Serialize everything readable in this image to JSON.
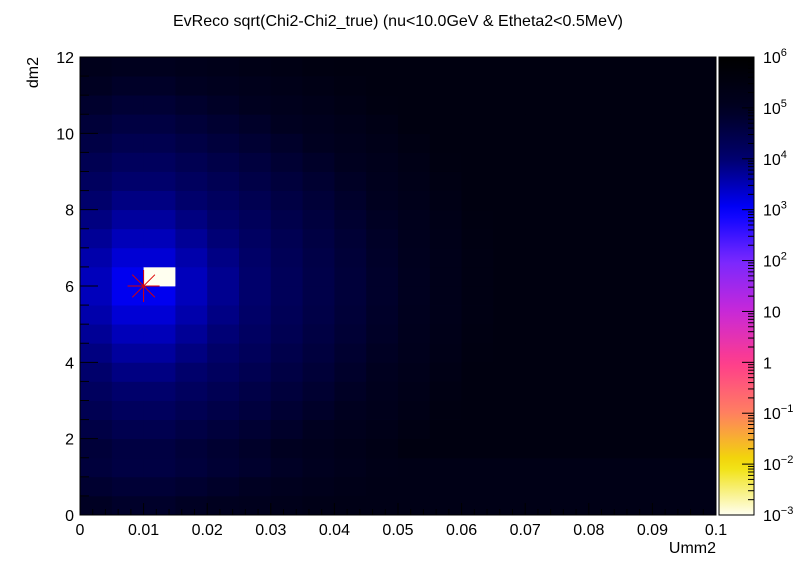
{
  "chart_data": {
    "type": "heatmap",
    "title": "EvReco sqrt(Chi2-Chi2_true) (nu<10.0GeV & Etheta2<0.5MeV)",
    "xlabel": "Umm2",
    "ylabel": "dm2",
    "xlim": [
      0,
      0.1
    ],
    "ylim": [
      0,
      12
    ],
    "x_ticks": [
      "0",
      "0.01",
      "0.02",
      "0.03",
      "0.04",
      "0.05",
      "0.06",
      "0.07",
      "0.08",
      "0.09",
      "0.1"
    ],
    "y_ticks": [
      "0",
      "2",
      "4",
      "6",
      "8",
      "10",
      "12"
    ],
    "x_bins": 20,
    "y_bins": 24,
    "z_scale": "log",
    "zlim": [
      0.001,
      1000000
    ],
    "z_ticks": [
      {
        "base": "10",
        "exp": "6"
      },
      {
        "base": "10",
        "exp": "5"
      },
      {
        "base": "10",
        "exp": "4"
      },
      {
        "base": "10",
        "exp": "3"
      },
      {
        "base": "10",
        "exp": "2"
      },
      {
        "base": "10",
        "exp": ""
      },
      {
        "base": "1",
        "exp": ""
      },
      {
        "base": "10",
        "exp": "−1"
      },
      {
        "base": "10",
        "exp": "−2"
      },
      {
        "base": "10",
        "exp": "−3"
      }
    ],
    "true_point": {
      "x": 0.01,
      "y": 6
    },
    "palette": [
      "#fffff0",
      "#f0e000",
      "#ff8060",
      "#ff3c8c",
      "#c828d8",
      "#7828ff",
      "#0000ff",
      "#00006e",
      "#000020",
      "#000000"
    ],
    "marker_color": "#dd0000"
  }
}
